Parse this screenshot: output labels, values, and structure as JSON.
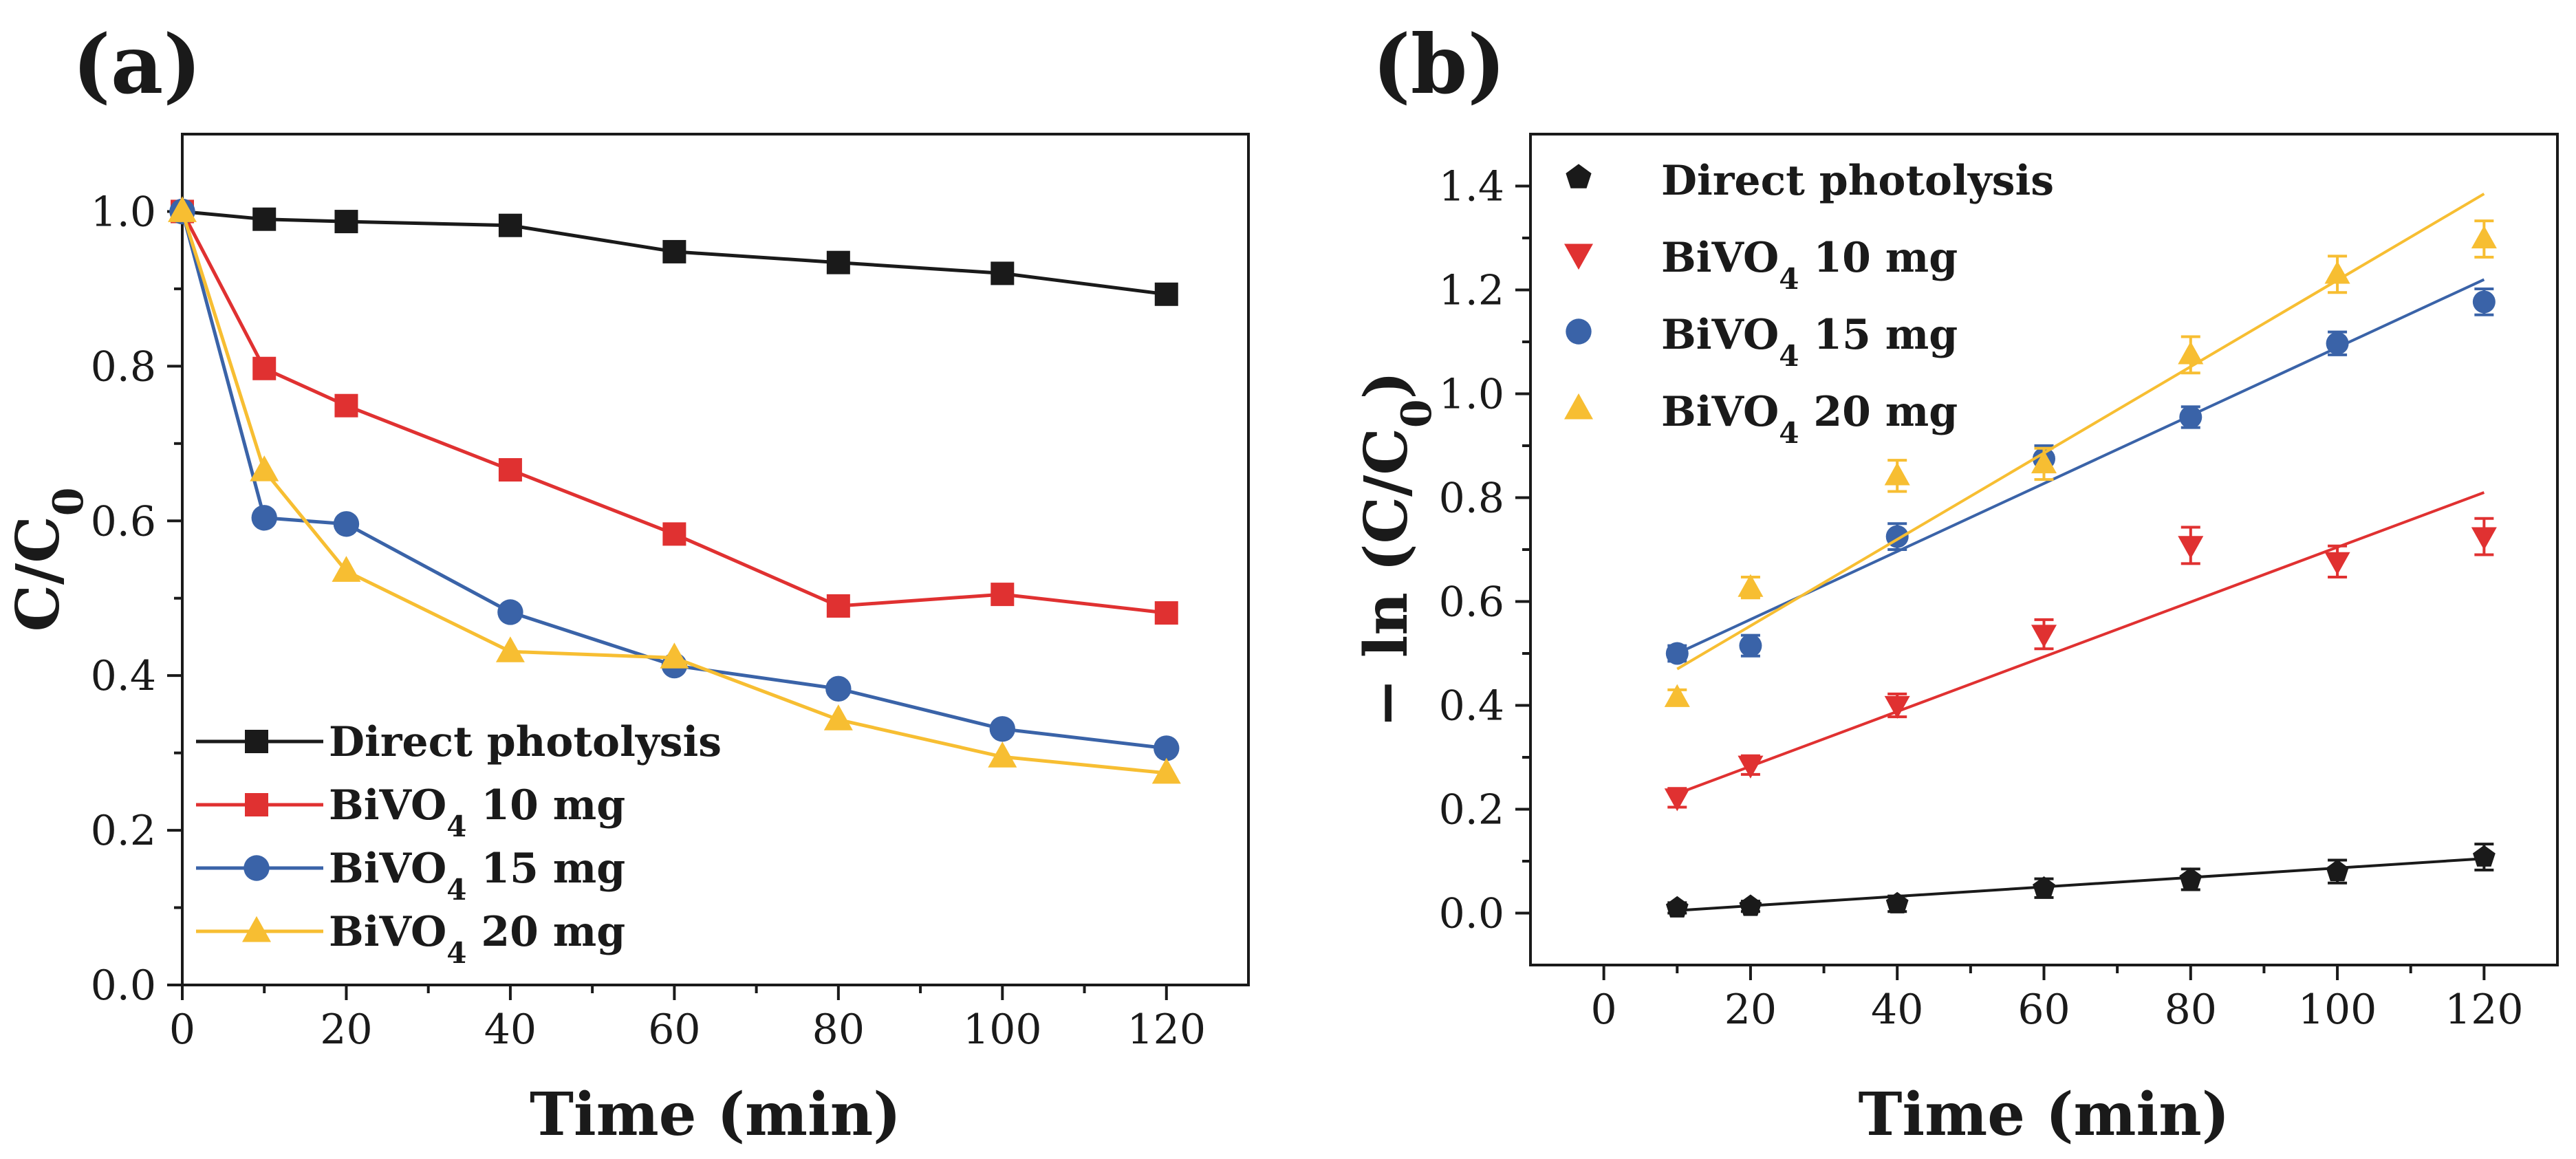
{
  "chart_data": [
    {
      "type": "line",
      "panel_label": "(a)",
      "xlabel": "Time (min)",
      "ylabel": "C/C",
      "ylabel_sub": "0",
      "xlim": [
        0,
        130
      ],
      "ylim": [
        0,
        1.1
      ],
      "xticks": [
        "0",
        "20",
        "40",
        "60",
        "80",
        "100",
        "120"
      ],
      "yticks": [
        "0.0",
        "0.2",
        "0.4",
        "0.6",
        "0.8",
        "1.0"
      ],
      "x": [
        0,
        10,
        20,
        40,
        60,
        80,
        100,
        120
      ],
      "legend_position": "bottom-left",
      "series": [
        {
          "name": "Direct photolysis",
          "name_sub": "",
          "name_tail": "",
          "color": "#1a1a1a",
          "marker": "square",
          "values": [
            1.0,
            0.99,
            0.987,
            0.982,
            0.948,
            0.934,
            0.92,
            0.893
          ]
        },
        {
          "name": "BiVO",
          "name_sub": "4",
          "name_tail": " 10 mg",
          "color": "#e03131",
          "marker": "square",
          "values": [
            1.0,
            0.797,
            0.749,
            0.666,
            0.583,
            0.49,
            0.505,
            0.481
          ]
        },
        {
          "name": "BiVO",
          "name_sub": "4",
          "name_tail": " 15 mg",
          "color": "#3a63a8",
          "marker": "circle",
          "values": [
            1.0,
            0.604,
            0.596,
            0.482,
            0.413,
            0.383,
            0.331,
            0.306
          ]
        },
        {
          "name": "BiVO",
          "name_sub": "4",
          "name_tail": " 20 mg",
          "color": "#f7be32",
          "marker": "triangle-up",
          "values": [
            1.0,
            0.665,
            0.535,
            0.431,
            0.423,
            0.343,
            0.295,
            0.274
          ]
        }
      ]
    },
    {
      "type": "scatter",
      "panel_label": "(b)",
      "xlabel": "Time (min)",
      "ylabel": "− ln (C/C",
      "ylabel_sub": "0",
      "ylabel_tail": ")",
      "xlim": [
        -10,
        130
      ],
      "ylim": [
        -0.1,
        1.5
      ],
      "xticks": [
        "0",
        "20",
        "40",
        "60",
        "80",
        "100",
        "120"
      ],
      "yticks": [
        "0.0",
        "0.2",
        "0.4",
        "0.6",
        "0.8",
        "1.0",
        "1.2",
        "1.4"
      ],
      "x": [
        10,
        20,
        40,
        60,
        80,
        100,
        120
      ],
      "legend_position": "top-left",
      "series": [
        {
          "name": "Direct photolysis",
          "name_sub": "",
          "name_tail": "",
          "color": "#1a1a1a",
          "marker": "pentagon",
          "values": [
            0.01,
            0.013,
            0.018,
            0.048,
            0.065,
            0.08,
            0.108
          ],
          "errors": [
            0.01,
            0.01,
            0.015,
            0.018,
            0.02,
            0.022,
            0.025
          ],
          "fit": [
            0.005,
            0.105
          ]
        },
        {
          "name": "BiVO",
          "name_sub": "4",
          "name_tail": " 10 mg",
          "color": "#e03131",
          "marker": "triangle-down",
          "values": [
            0.222,
            0.285,
            0.4,
            0.537,
            0.708,
            0.677,
            0.725
          ],
          "errors": [
            0.018,
            0.018,
            0.022,
            0.028,
            0.035,
            0.03,
            0.035
          ],
          "fit": [
            0.23,
            0.81
          ]
        },
        {
          "name": "BiVO",
          "name_sub": "4",
          "name_tail": " 15 mg",
          "color": "#3a63a8",
          "marker": "circle",
          "values": [
            0.5,
            0.515,
            0.725,
            0.875,
            0.955,
            1.097,
            1.177
          ],
          "errors": [
            0.015,
            0.02,
            0.025,
            0.025,
            0.02,
            0.022,
            0.025
          ],
          "fit": [
            0.5,
            1.22
          ]
        },
        {
          "name": "BiVO",
          "name_sub": "4",
          "name_tail": " 20 mg",
          "color": "#f7be32",
          "marker": "triangle-up",
          "values": [
            0.415,
            0.627,
            0.842,
            0.865,
            1.075,
            1.23,
            1.298
          ],
          "errors": [
            0.015,
            0.02,
            0.03,
            0.03,
            0.035,
            0.035,
            0.035
          ],
          "fit": [
            0.47,
            1.385
          ]
        }
      ]
    }
  ]
}
